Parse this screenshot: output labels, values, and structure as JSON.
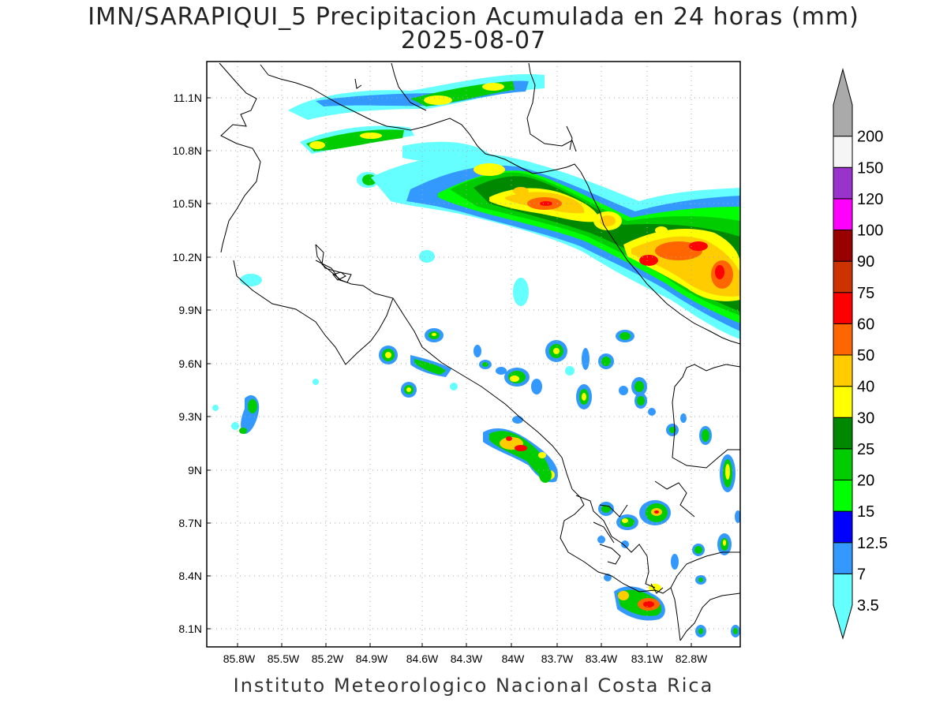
{
  "header": {
    "title": "IMN/SARAPIQUI_5 Precipitacion Acumulada en 24 horas (mm)",
    "date": "2025-08-07"
  },
  "footer": {
    "credit": "Instituto Meteorologico Nacional Costa Rica"
  },
  "axes": {
    "lat_labels": [
      "11.1N",
      "10.8N",
      "10.5N",
      "10.2N",
      "9.9N",
      "9.6N",
      "9.3N",
      "9N",
      "8.7N",
      "8.4N",
      "8.1N"
    ],
    "lon_labels": [
      "85.8W",
      "85.5W",
      "85.2W",
      "84.9W",
      "84.6W",
      "84.3W",
      "84W",
      "83.7W",
      "83.4W",
      "83.1W",
      "82.8W"
    ]
  },
  "legend": {
    "labels": [
      "3.5",
      "7",
      "12.5",
      "15",
      "20",
      "25",
      "30",
      "40",
      "50",
      "60",
      "75",
      "90",
      "100",
      "120",
      "150",
      "200"
    ],
    "colors": [
      "#66ffff",
      "#3399ff",
      "#0000ff",
      "#00ff00",
      "#00cc00",
      "#008800",
      "#ffff00",
      "#ffcc00",
      "#ff6600",
      "#ff0000",
      "#cc3300",
      "#990000",
      "#ff00ff",
      "#9933cc",
      "#f5f5f5",
      "#aaaaaa"
    ]
  }
}
